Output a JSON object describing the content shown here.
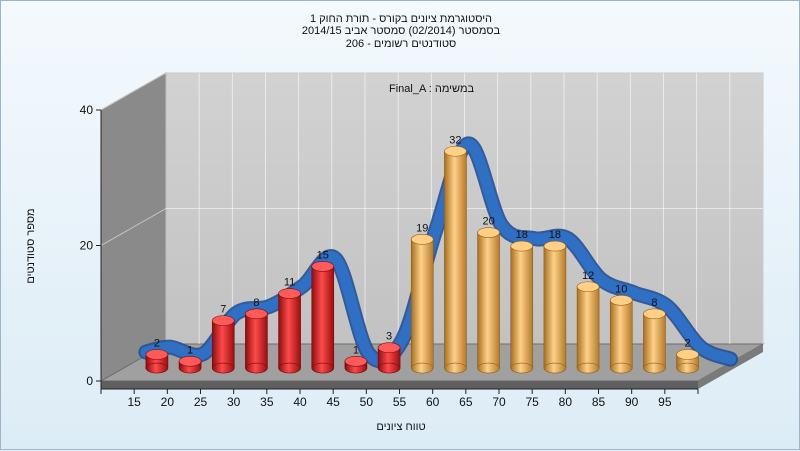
{
  "chart_data": {
    "type": "bar",
    "title_lines": [
      "היסטוגרמת ציונים בקורס - תורת החוק 1",
      "בסמסטר  (02/2014)  סמסטר אביב 2014/15",
      "סטודנטים רשומים - 206"
    ],
    "inner_label": "Final_A : במשימה",
    "xlabel": "טווח ציונים",
    "ylabel": "מספר סטודנטים",
    "x_ticks": [
      "15",
      "20",
      "25",
      "30",
      "35",
      "40",
      "45",
      "50",
      "55",
      "60",
      "65",
      "70",
      "75",
      "80",
      "85",
      "90",
      "95"
    ],
    "y_ticks": [
      "0",
      "20",
      "40"
    ],
    "ylim": [
      0,
      40
    ],
    "values": [
      2,
      1,
      7,
      8,
      11,
      15,
      1,
      3,
      19,
      32,
      20,
      18,
      18,
      12,
      10,
      8,
      2
    ],
    "bar_colors": [
      "red",
      "red",
      "red",
      "red",
      "red",
      "red",
      "red",
      "red",
      "orange",
      "orange",
      "orange",
      "orange",
      "orange",
      "orange",
      "orange",
      "orange",
      "orange"
    ],
    "colors": {
      "red": "#e3161b",
      "orange": "#e9ad52",
      "curve": "#2f6fc4",
      "back_wall": "#c9c9c9",
      "side_wall": "#8a8a8a"
    }
  }
}
